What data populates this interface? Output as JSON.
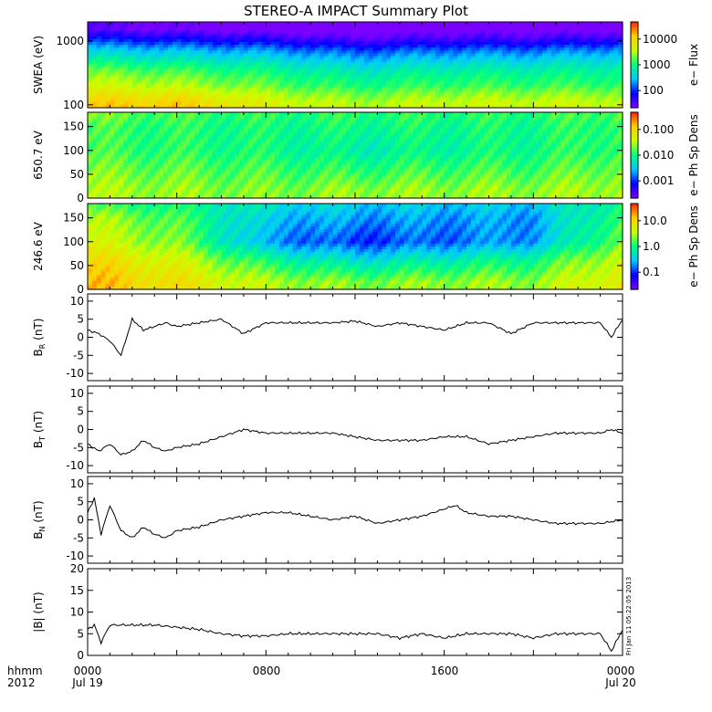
{
  "title": "STEREO-A IMPACT Summary Plot",
  "footer": {
    "hhmm_label": "hhmm",
    "year_label": "2012",
    "x_tick_labels": [
      "0000",
      "0800",
      "1600",
      "0000"
    ],
    "date_labels": [
      "Jul 19",
      "Jul 20"
    ],
    "timestamp": "Fri Jan 11 05:22:05 2013"
  },
  "colors": {
    "line": "#000000",
    "spectrogram_colormap": [
      "#7a00ff",
      "#0000ff",
      "#00c8ff",
      "#00ff80",
      "#c8ff00",
      "#ffd000",
      "#ff2000"
    ]
  },
  "panels": [
    {
      "id": "swea",
      "ylabel": "SWEA (eV)",
      "y_ticks": [
        "1000",
        "100"
      ],
      "colorbar_label": "e− Flux",
      "colorbar_ticks": [
        "10000",
        "1000",
        "100"
      ]
    },
    {
      "id": "pad650",
      "ylabel": "650.7 eV",
      "y_ticks": [
        "150",
        "100",
        "50",
        "0"
      ],
      "colorbar_label": "e− Ph Sp Dens",
      "colorbar_ticks": [
        "0.100",
        "0.010",
        "0.001"
      ]
    },
    {
      "id": "pad246",
      "ylabel": "246.6 eV",
      "y_ticks": [
        "150",
        "100",
        "50",
        "0"
      ],
      "colorbar_label": "e− Ph Sp Dens",
      "colorbar_ticks": [
        "10.0",
        "1.0",
        "0.1"
      ]
    },
    {
      "id": "br",
      "ylabel": "Bʀ (nT)",
      "ylabel_main": "B",
      "ylabel_sub": "R",
      "ylabel_unit": " (nT)",
      "y_ticks": [
        "10",
        "5",
        "0",
        "-5",
        "-10"
      ]
    },
    {
      "id": "bt",
      "ylabel_main": "B",
      "ylabel_sub": "T",
      "ylabel_unit": " (nT)",
      "y_ticks": [
        "10",
        "5",
        "0",
        "-5",
        "-10"
      ]
    },
    {
      "id": "bn",
      "ylabel_main": "B",
      "ylabel_sub": "N",
      "ylabel_unit": " (nT)",
      "y_ticks": [
        "10",
        "5",
        "0",
        "-5",
        "-10"
      ]
    },
    {
      "id": "bmag",
      "ylabel_main": "|B| (nT)",
      "ylabel_sub": "",
      "ylabel_unit": "",
      "y_ticks": [
        "20",
        "15",
        "10",
        "5",
        "0"
      ]
    }
  ],
  "chart_data": [
    {
      "type": "heatmap",
      "panel": "SWEA",
      "ylabel": "SWEA (eV)",
      "colorbar_label": "e− Flux",
      "y_scale": "log",
      "ylim": [
        90,
        2000
      ],
      "colorbar_range": [
        50,
        30000
      ],
      "x_hours": [
        0,
        4,
        8,
        12,
        16,
        20,
        24
      ],
      "y_energy_ev": [
        100,
        200,
        500,
        1000,
        1500
      ],
      "log_flux": [
        [
          4.0,
          4.0,
          3.7,
          3.5,
          3.6,
          3.6,
          3.6
        ],
        [
          3.6,
          3.5,
          3.3,
          3.1,
          3.2,
          3.2,
          3.2
        ],
        [
          3.0,
          2.9,
          2.8,
          2.6,
          2.7,
          2.7,
          2.8
        ],
        [
          2.3,
          2.2,
          2.1,
          1.9,
          2.0,
          2.0,
          2.1
        ],
        [
          1.8,
          1.7,
          1.6,
          1.5,
          1.6,
          1.6,
          1.6
        ]
      ]
    },
    {
      "type": "heatmap",
      "panel": "650.7 eV pitch angle",
      "ylabel": "650.7 eV",
      "colorbar_label": "e− Ph Sp Dens",
      "ylim": [
        0,
        180
      ],
      "colorbar_range": [
        0.001,
        0.1
      ],
      "x_hours": [
        0,
        4,
        8,
        12,
        16,
        20,
        24
      ],
      "y_pitch_deg": [
        15,
        60,
        100,
        150,
        175
      ],
      "log_density": [
        [
          -1.7,
          -1.75,
          -1.8,
          -1.75,
          -1.75,
          -1.75,
          -1.7
        ],
        [
          -1.8,
          -1.85,
          -1.9,
          -1.95,
          -1.9,
          -1.9,
          -1.8
        ],
        [
          -1.9,
          -1.95,
          -2.0,
          -2.1,
          -2.05,
          -2.0,
          -1.9
        ],
        [
          -1.9,
          -1.95,
          -2.0,
          -2.0,
          -2.0,
          -2.0,
          -1.9
        ],
        [
          -1.8,
          -1.9,
          -1.95,
          -1.95,
          -1.95,
          -1.95,
          -1.85
        ]
      ]
    },
    {
      "type": "heatmap",
      "panel": "246.6 eV pitch angle",
      "ylabel": "246.6 eV",
      "colorbar_label": "e− Ph Sp Dens",
      "ylim": [
        0,
        180
      ],
      "colorbar_range": [
        0.1,
        10
      ],
      "x_hours": [
        0,
        4,
        8,
        12,
        16,
        20,
        24
      ],
      "y_pitch_deg": [
        15,
        60,
        100,
        150,
        175
      ],
      "log_density": [
        [
          0.7,
          0.55,
          0.3,
          0.2,
          0.25,
          0.25,
          0.5
        ],
        [
          0.6,
          0.4,
          0.0,
          -0.2,
          -0.1,
          0.0,
          0.4
        ],
        [
          0.4,
          0.2,
          -0.4,
          -0.6,
          -0.5,
          -0.4,
          0.2
        ],
        [
          0.3,
          0.1,
          -0.3,
          -0.4,
          -0.4,
          -0.4,
          0.1
        ],
        [
          0.1,
          0.0,
          -0.2,
          -0.3,
          -0.3,
          -0.3,
          0.0
        ]
      ]
    },
    {
      "type": "line",
      "panel": "BR",
      "ylim": [
        -12,
        12
      ],
      "x_hours": [
        0,
        0.5,
        1,
        1.5,
        2,
        2.5,
        3,
        3.5,
        4,
        5,
        6,
        7,
        8,
        9,
        10,
        11,
        12,
        13,
        14,
        15,
        16,
        17,
        18,
        19,
        20,
        21,
        22,
        23,
        23.5,
        24
      ],
      "values": [
        2,
        1,
        -1,
        -5,
        5,
        2,
        3,
        4,
        3,
        4,
        5,
        1,
        4,
        4,
        4,
        4,
        4.5,
        3,
        4,
        3,
        2,
        4,
        4,
        1,
        4,
        4,
        4,
        4,
        0,
        5
      ]
    },
    {
      "type": "line",
      "panel": "BT",
      "ylim": [
        -12,
        12
      ],
      "x_hours": [
        0,
        0.5,
        1,
        1.5,
        2,
        2.5,
        3,
        3.5,
        4,
        5,
        6,
        7,
        8,
        9,
        10,
        11,
        12,
        13,
        14,
        15,
        16,
        17,
        18,
        19,
        20,
        21,
        22,
        23,
        23.5,
        24
      ],
      "values": [
        -4,
        -6,
        -4,
        -7,
        -6,
        -3,
        -5,
        -6,
        -5,
        -4,
        -2,
        0,
        -1,
        -1,
        -1,
        -1,
        -2,
        -3,
        -3,
        -3,
        -2,
        -2,
        -4,
        -3,
        -2,
        -1,
        -1,
        -1,
        0,
        -1
      ]
    },
    {
      "type": "line",
      "panel": "BN",
      "ylim": [
        -12,
        12
      ],
      "x_hours": [
        0,
        0.3,
        0.6,
        1,
        1.5,
        2,
        2.5,
        3,
        3.5,
        4,
        5,
        6,
        7,
        8,
        9,
        10,
        11,
        12,
        13,
        14,
        15,
        16,
        16.5,
        17,
        18,
        19,
        20,
        21,
        22,
        23,
        24
      ],
      "values": [
        2,
        6,
        -4,
        4,
        -3,
        -5,
        -2,
        -4,
        -5,
        -3,
        -2,
        0,
        1,
        2,
        2,
        1,
        0,
        1,
        -1,
        0,
        1,
        3,
        4,
        2,
        1,
        1,
        0,
        -1,
        -1,
        -1,
        0
      ]
    },
    {
      "type": "line",
      "panel": "|B|",
      "ylim": [
        0,
        20
      ],
      "x_hours": [
        0,
        0.3,
        0.6,
        1,
        1.5,
        2,
        2.5,
        3,
        4,
        5,
        6,
        7,
        8,
        9,
        10,
        11,
        12,
        13,
        14,
        15,
        16,
        17,
        18,
        19,
        20,
        21,
        22,
        23,
        23.5,
        24
      ],
      "values": [
        6,
        7,
        3,
        7,
        7,
        7,
        7,
        7,
        6.5,
        6,
        5,
        4.5,
        4.5,
        5,
        5,
        5,
        5,
        5,
        4,
        5,
        4,
        5,
        5,
        5,
        4,
        5,
        5,
        5,
        1,
        6
      ]
    }
  ]
}
